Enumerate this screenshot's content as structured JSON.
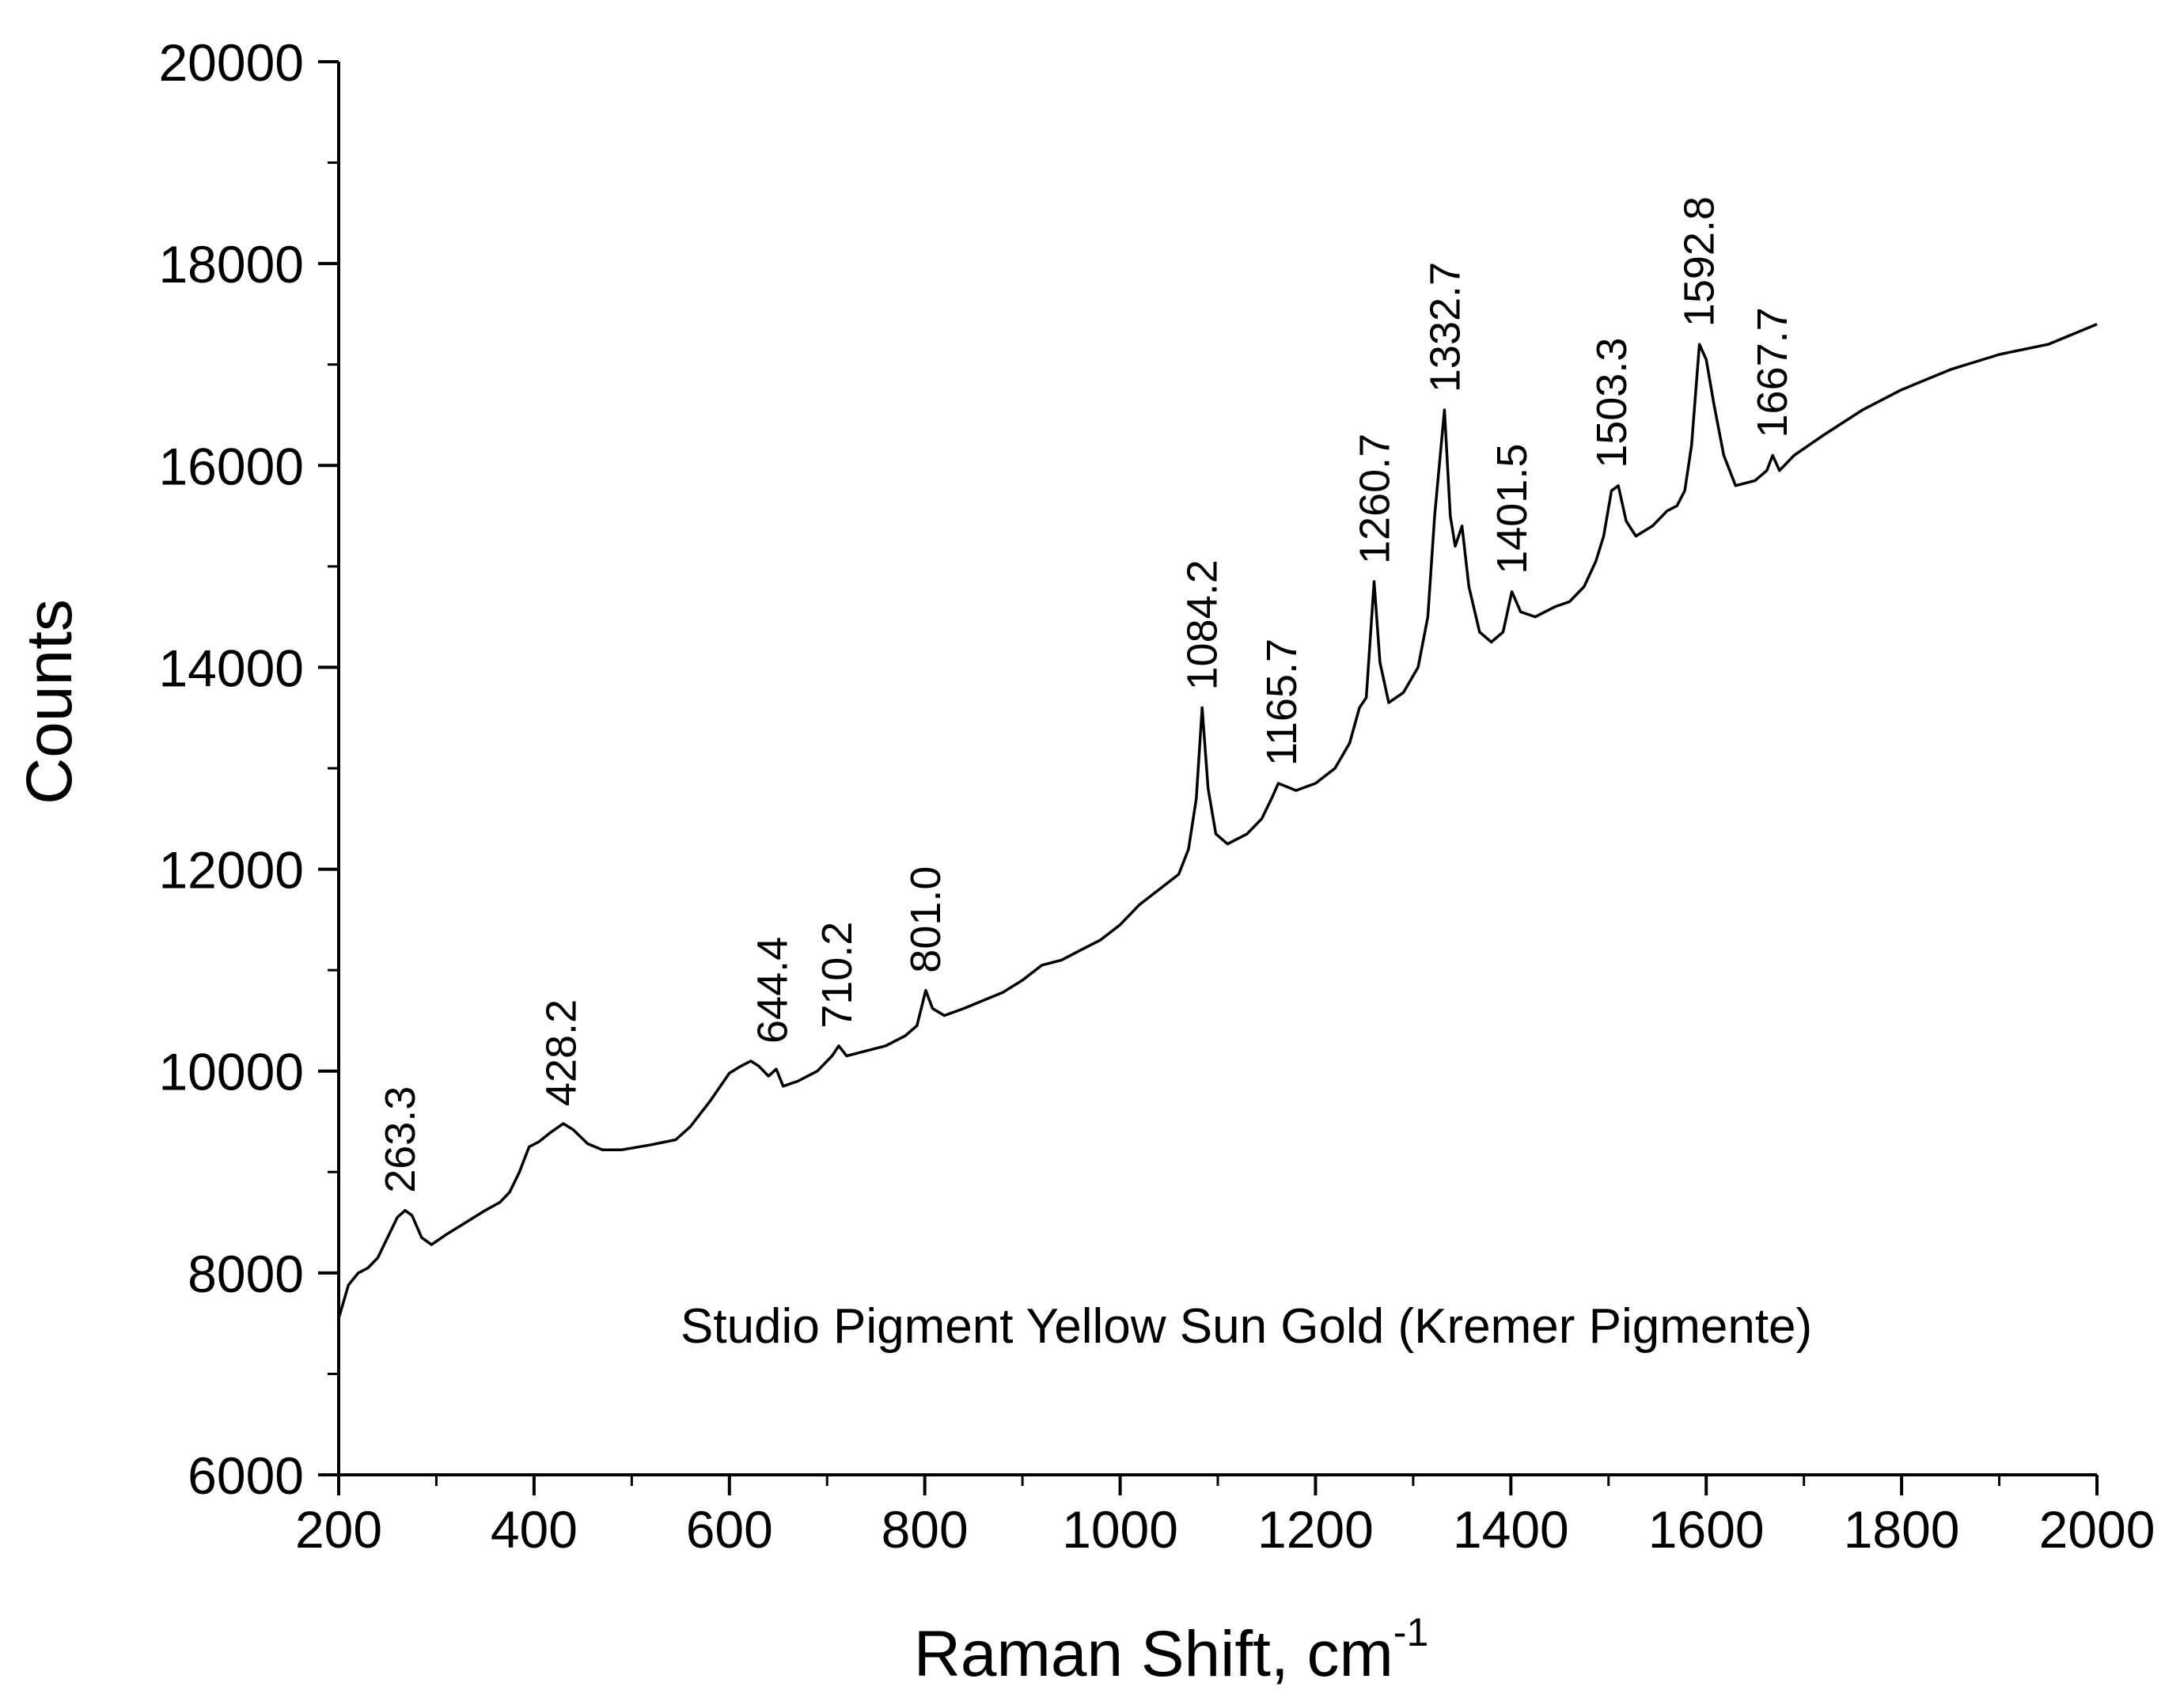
{
  "chart_data": {
    "type": "line",
    "xlabel": "Raman Shift, cm",
    "xlabel_superscript": "-1",
    "ylabel": "Counts",
    "xlim": [
      200,
      2000
    ],
    "ylim": [
      6000,
      20000
    ],
    "x_ticks": [
      200,
      400,
      600,
      800,
      1000,
      1200,
      1400,
      1600,
      1800,
      2000
    ],
    "y_ticks": [
      6000,
      8000,
      10000,
      12000,
      14000,
      16000,
      18000,
      20000
    ],
    "x_tick_labels": [
      "200",
      "400",
      "600",
      "800",
      "1000",
      "1200",
      "1400",
      "1600",
      "1800",
      "2000"
    ],
    "y_tick_labels": [
      "6000",
      "8000",
      "10000",
      "12000",
      "14000",
      "16000",
      "18000",
      "20000"
    ],
    "grid": false,
    "annotation": "Studio Pigment Yellow Sun Gold (Kremer Pigmente)",
    "line_color": "#000000",
    "series": [
      {
        "x": [
          200,
          210,
          220,
          230,
          240,
          250,
          260,
          268,
          275,
          285,
          295,
          310,
          330,
          350,
          365,
          375,
          385,
          395,
          405,
          418,
          430,
          440,
          455,
          470,
          490,
          520,
          545,
          560,
          580,
          600,
          612,
          622,
          630,
          640,
          648,
          655,
          670,
          690,
          705,
          712,
          720,
          740,
          760,
          780,
          792,
          801,
          808,
          820,
          840,
          860,
          880,
          900,
          920,
          940,
          960,
          980,
          1000,
          1020,
          1040,
          1060,
          1070,
          1078,
          1084,
          1090,
          1098,
          1110,
          1130,
          1145,
          1155,
          1162,
          1170,
          1180,
          1200,
          1220,
          1235,
          1245,
          1252,
          1260,
          1266,
          1275,
          1290,
          1305,
          1315,
          1322,
          1332,
          1338,
          1343,
          1350,
          1357,
          1368,
          1380,
          1392,
          1401,
          1410,
          1425,
          1445,
          1460,
          1475,
          1487,
          1495,
          1503,
          1510,
          1518,
          1528,
          1545,
          1560,
          1570,
          1578,
          1585,
          1593,
          1600,
          1608,
          1618,
          1630,
          1650,
          1662,
          1668,
          1675,
          1690,
          1720,
          1760,
          1800,
          1850,
          1900,
          1950,
          2000
        ],
        "y": [
          7550,
          7880,
          8000,
          8050,
          8150,
          8350,
          8550,
          8620,
          8570,
          8350,
          8280,
          8380,
          8500,
          8620,
          8700,
          8800,
          9000,
          9250,
          9300,
          9400,
          9480,
          9420,
          9280,
          9220,
          9220,
          9270,
          9320,
          9450,
          9700,
          9980,
          10050,
          10100,
          10050,
          9950,
          10020,
          9850,
          9900,
          10000,
          10150,
          10250,
          10150,
          10200,
          10250,
          10350,
          10450,
          10800,
          10620,
          10550,
          10620,
          10700,
          10780,
          10900,
          11050,
          11100,
          11200,
          11300,
          11450,
          11650,
          11800,
          11950,
          12200,
          12700,
          13600,
          12800,
          12350,
          12250,
          12350,
          12500,
          12700,
          12850,
          12820,
          12780,
          12850,
          13000,
          13250,
          13600,
          13700,
          14850,
          14050,
          13650,
          13750,
          14000,
          14500,
          15500,
          16550,
          15500,
          15200,
          15400,
          14800,
          14350,
          14250,
          14350,
          14750,
          14550,
          14500,
          14600,
          14650,
          14800,
          15050,
          15300,
          15750,
          15800,
          15450,
          15300,
          15400,
          15550,
          15600,
          15750,
          16200,
          17200,
          17050,
          16600,
          16100,
          15800,
          15850,
          15950,
          16100,
          15950,
          16100,
          16300,
          16550,
          16750,
          16950,
          17100,
          17200,
          17400
        ]
      }
    ],
    "peak_labels": [
      {
        "x": 263.3,
        "y": 8620,
        "label": "263.3"
      },
      {
        "x": 428.2,
        "y": 9480,
        "label": "428.2"
      },
      {
        "x": 644.4,
        "y": 10100,
        "label": "644.4"
      },
      {
        "x": 710.2,
        "y": 10250,
        "label": "710.2"
      },
      {
        "x": 801.0,
        "y": 10800,
        "label": "801.0"
      },
      {
        "x": 1084.2,
        "y": 13600,
        "label": "1084.2"
      },
      {
        "x": 1165.7,
        "y": 12850,
        "label": "1165.7"
      },
      {
        "x": 1260.7,
        "y": 14850,
        "label": "1260.7"
      },
      {
        "x": 1332.7,
        "y": 16550,
        "label": "1332.7"
      },
      {
        "x": 1401.5,
        "y": 14750,
        "label": "1401.5"
      },
      {
        "x": 1503.3,
        "y": 15800,
        "label": "1503.3"
      },
      {
        "x": 1592.8,
        "y": 17200,
        "label": "1592.8"
      },
      {
        "x": 1667.7,
        "y": 16100,
        "label": "1667.7"
      }
    ]
  }
}
